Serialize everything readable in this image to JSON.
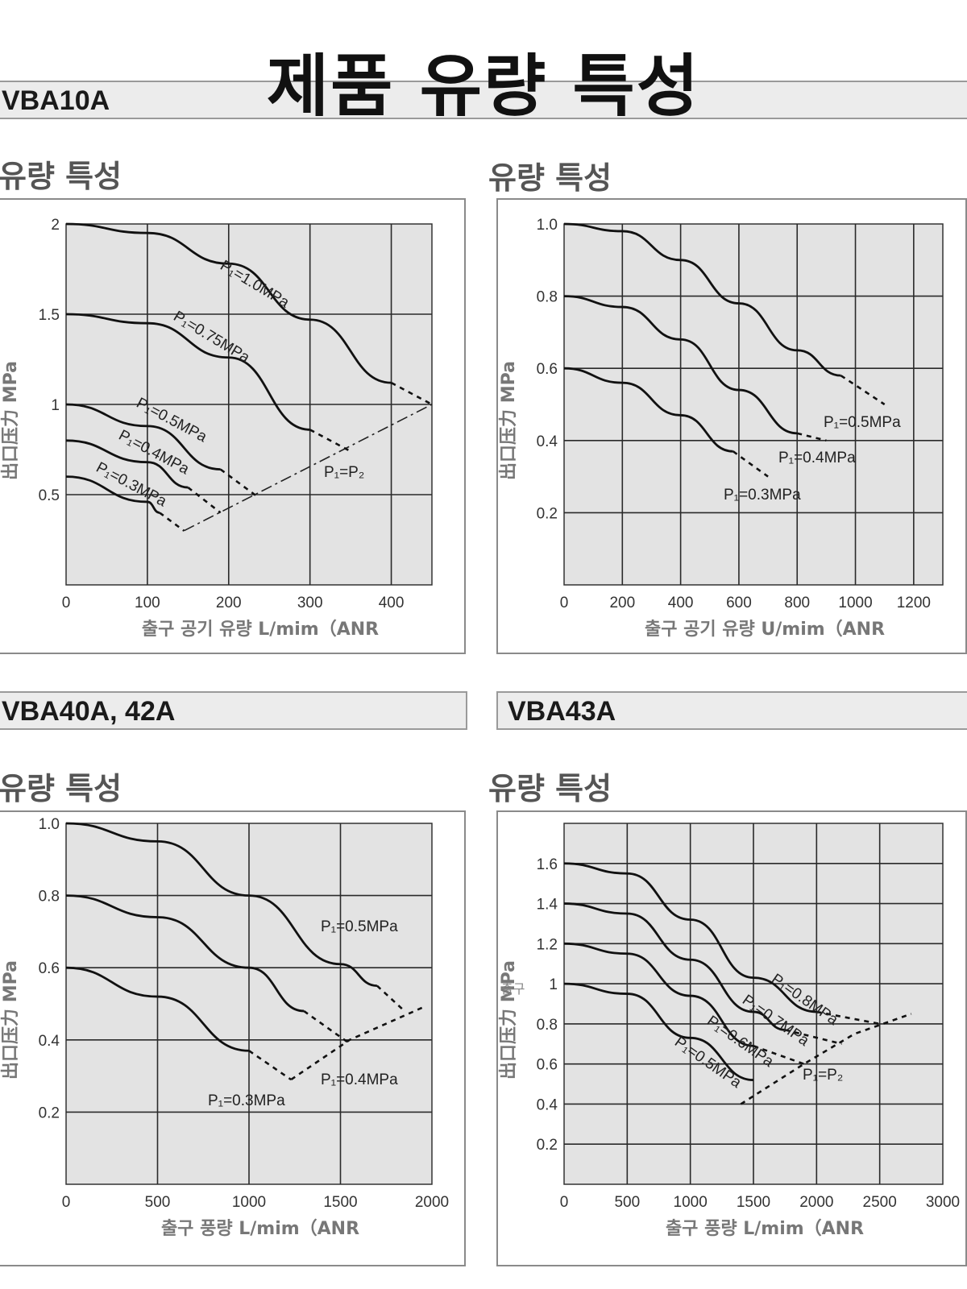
{
  "page": {
    "title": "제품 유량 특성",
    "section_title": "유량 특성",
    "stray_note": "출구"
  },
  "colors": {
    "plot_background": "#e3e3e3",
    "curve": "#111111",
    "bar": "#ececec"
  },
  "chart_data": [
    {
      "type": "line",
      "model": "VBA10A",
      "subtitle": "유량 특성",
      "xlabel": "출구 공기 유량 L/mim（ANR",
      "ylabel": "出口压力 MPa",
      "xlim": [
        0,
        450
      ],
      "ylim": [
        0,
        2
      ],
      "xticks": [
        0,
        100,
        200,
        300,
        400
      ],
      "yticks": [
        0.5,
        1,
        1.5,
        2
      ],
      "ytick_labels": [
        "0.5",
        "1",
        "1.5",
        "2"
      ],
      "grid": true,
      "series": [
        {
          "name": "P₁=1.0MPa",
          "solid": [
            [
              0,
              2.0
            ],
            [
              100,
              1.95
            ],
            [
              200,
              1.78
            ],
            [
              300,
              1.47
            ],
            [
              400,
              1.12
            ]
          ],
          "dashed": [
            [
              400,
              1.12
            ],
            [
              450,
              1.0
            ]
          ]
        },
        {
          "name": "P₁=0.75MPa",
          "solid": [
            [
              0,
              1.5
            ],
            [
              100,
              1.45
            ],
            [
              200,
              1.26
            ],
            [
              300,
              0.86
            ]
          ],
          "dashed": [
            [
              300,
              0.86
            ],
            [
              350,
              0.74
            ]
          ]
        },
        {
          "name": "P₁=0.5MPa",
          "solid": [
            [
              0,
              1.0
            ],
            [
              100,
              0.88
            ],
            [
              190,
              0.64
            ]
          ],
          "dashed": [
            [
              190,
              0.64
            ],
            [
              235,
              0.49
            ]
          ]
        },
        {
          "name": "P₁=0.4MPa",
          "solid": [
            [
              0,
              0.8
            ],
            [
              100,
              0.68
            ],
            [
              150,
              0.54
            ]
          ],
          "dashed": [
            [
              150,
              0.54
            ],
            [
              190,
              0.4
            ]
          ]
        },
        {
          "name": "P₁=0.3MPa",
          "solid": [
            [
              0,
              0.6
            ],
            [
              100,
              0.46
            ],
            [
              115,
              0.4
            ]
          ],
          "dashed": [
            [
              115,
              0.4
            ],
            [
              145,
              0.3
            ]
          ]
        }
      ],
      "reference_line": {
        "name": "P₁=P₂",
        "points": [
          [
            145,
            0.3
          ],
          [
            450,
            1.0
          ]
        ]
      }
    },
    {
      "type": "line",
      "model": "",
      "subtitle": "유량 특성",
      "xlabel": "출구 공기 유량 U/mim（ANR",
      "ylabel": "出口压力 MPa",
      "xlim": [
        0,
        1300
      ],
      "ylim": [
        0,
        1.0
      ],
      "xticks": [
        0,
        200,
        400,
        600,
        800,
        1000,
        1200
      ],
      "yticks": [
        0.2,
        0.4,
        0.6,
        0.8,
        1.0
      ],
      "ytick_labels": [
        "0.2",
        "0.4",
        "0.6",
        "0.8",
        "1.0"
      ],
      "grid": true,
      "series": [
        {
          "name": "P₁=0.5MPa",
          "solid": [
            [
              0,
              1.0
            ],
            [
              200,
              0.98
            ],
            [
              400,
              0.9
            ],
            [
              600,
              0.78
            ],
            [
              800,
              0.65
            ],
            [
              950,
              0.58
            ]
          ],
          "dashed": [
            [
              950,
              0.58
            ],
            [
              1100,
              0.5
            ]
          ]
        },
        {
          "name": "P₁=0.4MPa",
          "solid": [
            [
              0,
              0.8
            ],
            [
              200,
              0.77
            ],
            [
              400,
              0.68
            ],
            [
              600,
              0.54
            ],
            [
              800,
              0.42
            ]
          ],
          "dashed": [
            [
              800,
              0.42
            ],
            [
              900,
              0.4
            ]
          ]
        },
        {
          "name": "P₁=0.3MPa",
          "solid": [
            [
              0,
              0.6
            ],
            [
              200,
              0.56
            ],
            [
              400,
              0.47
            ],
            [
              580,
              0.37
            ]
          ],
          "dashed": [
            [
              580,
              0.37
            ],
            [
              700,
              0.3
            ]
          ]
        }
      ]
    },
    {
      "type": "line",
      "model": "VBA40A, 42A",
      "subtitle": "유량 특성",
      "xlabel": "출구 풍량 L/mim（ANR",
      "ylabel": "出口压力 MPa",
      "xlim": [
        0,
        2000
      ],
      "ylim": [
        0,
        1.0
      ],
      "xticks": [
        0,
        500,
        1000,
        1500,
        2000
      ],
      "yticks": [
        0.2,
        0.4,
        0.6,
        0.8,
        1.0
      ],
      "ytick_labels": [
        "0.2",
        "0.4",
        "0.6",
        "0.8",
        "1.0"
      ],
      "grid": true,
      "series": [
        {
          "name": "P₁=0.5MPa",
          "solid": [
            [
              0,
              1.0
            ],
            [
              500,
              0.95
            ],
            [
              1000,
              0.8
            ],
            [
              1500,
              0.61
            ],
            [
              1700,
              0.55
            ]
          ],
          "dashed": [
            [
              1700,
              0.55
            ],
            [
              1850,
              0.48
            ]
          ]
        },
        {
          "name": "P₁=0.4MPa",
          "solid": [
            [
              0,
              0.8
            ],
            [
              500,
              0.74
            ],
            [
              1000,
              0.6
            ],
            [
              1300,
              0.48
            ]
          ],
          "dashed": [
            [
              1300,
              0.48
            ],
            [
              1550,
              0.39
            ]
          ]
        },
        {
          "name": "P₁=0.3MPa",
          "solid": [
            [
              0,
              0.6
            ],
            [
              500,
              0.52
            ],
            [
              1000,
              0.37
            ]
          ],
          "dashed": [
            [
              1000,
              0.37
            ],
            [
              1230,
              0.29
            ]
          ]
        }
      ],
      "reference_line": {
        "name": "",
        "points": [
          [
            1230,
            0.29
          ],
          [
            1550,
            0.4
          ],
          [
            1950,
            0.49
          ]
        ]
      }
    },
    {
      "type": "line",
      "model": "VBA43A",
      "subtitle": "유량 특성",
      "xlabel": "출구 풍량 L/mim（ANR",
      "ylabel": "出口压力 MPa",
      "xlim": [
        0,
        3000
      ],
      "ylim": [
        0,
        1.8
      ],
      "xticks": [
        0,
        500,
        1000,
        1500,
        2000,
        2500,
        3000
      ],
      "yticks": [
        0.2,
        0.4,
        0.6,
        0.8,
        1,
        1.2,
        1.4,
        1.6
      ],
      "ytick_labels": [
        "0.2",
        "0.4",
        "0.6",
        "0.8",
        "1",
        "1.2",
        "1.4",
        "1.6"
      ],
      "grid": true,
      "series": [
        {
          "name": "P₁=0.8MPa",
          "solid": [
            [
              0,
              1.6
            ],
            [
              500,
              1.55
            ],
            [
              1000,
              1.32
            ],
            [
              1500,
              1.03
            ],
            [
              2000,
              0.86
            ]
          ],
          "dashed": [
            [
              2000,
              0.86
            ],
            [
              2500,
              0.8
            ]
          ]
        },
        {
          "name": "P₁=0.7MPa",
          "solid": [
            [
              0,
              1.4
            ],
            [
              500,
              1.35
            ],
            [
              1000,
              1.12
            ],
            [
              1500,
              0.86
            ],
            [
              1750,
              0.77
            ]
          ],
          "dashed": [
            [
              1750,
              0.77
            ],
            [
              2200,
              0.7
            ]
          ]
        },
        {
          "name": "P₁=0.6MPa",
          "solid": [
            [
              0,
              1.2
            ],
            [
              500,
              1.15
            ],
            [
              1000,
              0.94
            ],
            [
              1500,
              0.69
            ]
          ],
          "dashed": [
            [
              1500,
              0.69
            ],
            [
              1900,
              0.6
            ]
          ]
        },
        {
          "name": "P₁=0.5MPa",
          "solid": [
            [
              0,
              1.0
            ],
            [
              500,
              0.95
            ],
            [
              1000,
              0.73
            ],
            [
              1500,
              0.52
            ]
          ]
        }
      ],
      "reference_line": {
        "name": "P₁=P₂",
        "points": [
          [
            1400,
            0.4
          ],
          [
            1900,
            0.6
          ],
          [
            2300,
            0.75
          ],
          [
            2750,
            0.85
          ]
        ]
      }
    }
  ]
}
